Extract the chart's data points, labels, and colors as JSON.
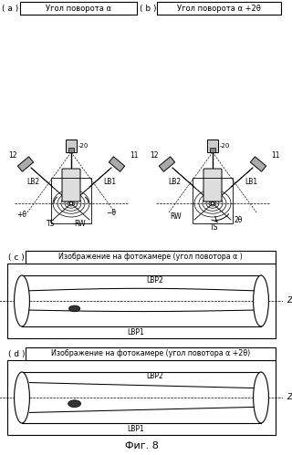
{
  "bg_color": "#ffffff",
  "fig_w": 310,
  "fig_h": 499,
  "panel_a_label": "( a )",
  "panel_a_title": "Угол поворота α",
  "panel_b_label": "( b )",
  "panel_b_title": "Угол поворота α +2θ",
  "panel_c_label": "( c )",
  "panel_c_title": "Изображение на фотокамере (угол повотора α )",
  "panel_d_label": "( d )",
  "panel_d_title": "Изображение на фотокамере (угол повотора α +2θ)",
  "fig_label": "Фиг. 8"
}
